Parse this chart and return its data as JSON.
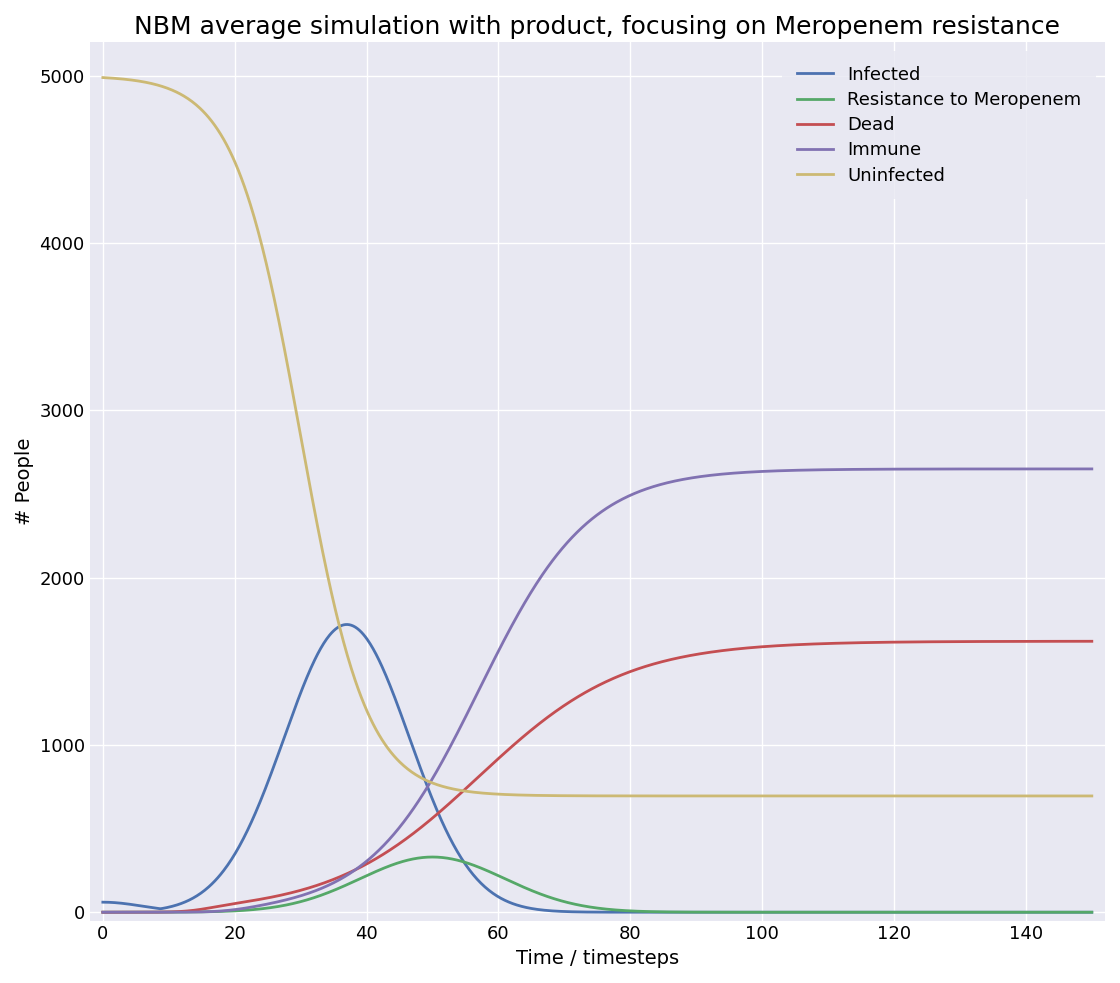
{
  "title": "NBM average simulation with product, focusing on Meropenem resistance",
  "xlabel": "Time / timesteps",
  "ylabel": "# People",
  "xlim": [
    -2,
    152
  ],
  "ylim": [
    -50,
    5200
  ],
  "xticks": [
    0,
    20,
    40,
    60,
    80,
    100,
    120,
    140
  ],
  "yticks": [
    0,
    1000,
    2000,
    3000,
    4000,
    5000
  ],
  "figure_facecolor": "#ffffff",
  "axes_facecolor": "#e8e8f2",
  "legend_labels": [
    "Infected",
    "Resistance to Meropenem",
    "Dead",
    "Immune",
    "Uninfected"
  ],
  "line_colors": {
    "Infected": "#4c72b0",
    "Resistance to Meropenem": "#55a868",
    "Dead": "#c44e52",
    "Immune": "#8172b2",
    "Uninfected": "#ccb974"
  },
  "population": 5000,
  "t_max": 150,
  "grid": true,
  "title_fontsize": 18,
  "label_fontsize": 14,
  "tick_fontsize": 13,
  "legend_fontsize": 13,
  "linewidth": 2.0
}
